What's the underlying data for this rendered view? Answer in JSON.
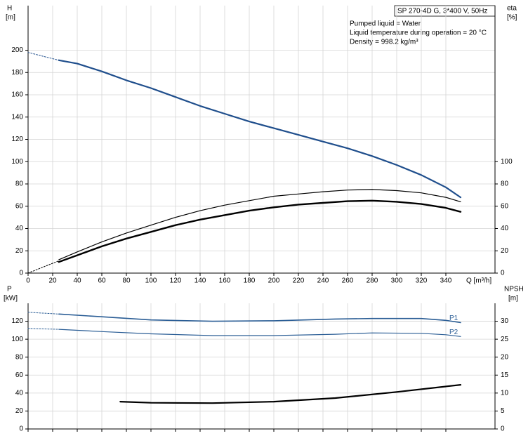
{
  "chart_data": [
    {
      "type": "line",
      "title": "SP 270-4D G, 3*400 V, 50Hz",
      "annotations": [
        "Pumped liquid = Water",
        "Liquid temperature during operation = 20 °C",
        "Density = 998.2 kg/m³"
      ],
      "y_label": [
        "H",
        "[m]"
      ],
      "y2_label": [
        "eta",
        "[%]"
      ],
      "x_label": "Q [m³/h]",
      "xlim": [
        0,
        380
      ],
      "xticks": [
        0,
        20,
        40,
        60,
        80,
        100,
        120,
        140,
        160,
        180,
        200,
        220,
        240,
        260,
        280,
        300,
        320,
        340
      ],
      "ylim": [
        0,
        240
      ],
      "yticks": [
        0,
        20,
        40,
        60,
        80,
        100,
        120,
        140,
        160,
        180,
        200
      ],
      "y2lim": [
        0,
        240
      ],
      "y2ticks": [
        0,
        20,
        40,
        60,
        80,
        100
      ],
      "grid": true,
      "series": [
        {
          "color": "#1f4e8c",
          "width": 1,
          "dashed": true,
          "x": [
            0,
            25
          ],
          "values": [
            198,
            191
          ]
        },
        {
          "color": "#1f4e8c",
          "width": 2.2,
          "x": [
            25,
            40,
            60,
            80,
            100,
            120,
            140,
            160,
            180,
            200,
            220,
            240,
            260,
            280,
            300,
            320,
            340,
            352
          ],
          "values": [
            191,
            188,
            181,
            173,
            166,
            158,
            150,
            143,
            136,
            130,
            124,
            118,
            112,
            105,
            97,
            88,
            77,
            68
          ]
        },
        {
          "color": "#000000",
          "width": 1,
          "dashed": true,
          "axis": "y2",
          "x": [
            0,
            25
          ],
          "values": [
            0,
            11
          ]
        },
        {
          "color": "#000000",
          "width": 1.2,
          "axis": "y2",
          "x": [
            25,
            40,
            60,
            80,
            100,
            120,
            140,
            160,
            180,
            200,
            220,
            240,
            260,
            280,
            300,
            320,
            340,
            352
          ],
          "values": [
            12,
            19,
            28,
            36,
            43,
            50,
            56,
            61,
            65,
            69,
            71,
            73,
            74.5,
            75,
            74,
            72,
            68,
            64
          ]
        },
        {
          "color": "#000000",
          "width": 2.4,
          "axis": "y2",
          "x": [
            25,
            40,
            60,
            80,
            100,
            120,
            140,
            160,
            180,
            200,
            220,
            240,
            260,
            280,
            300,
            320,
            340,
            352
          ],
          "values": [
            10,
            16,
            24,
            31,
            37,
            43,
            48,
            52,
            56,
            59,
            61.5,
            63,
            64.5,
            65,
            64,
            62,
            58.5,
            55
          ]
        }
      ]
    },
    {
      "type": "line",
      "y_label": [
        "P",
        "[kW]"
      ],
      "y2_label": [
        "NPSH",
        "[m]"
      ],
      "xlim": [
        0,
        380
      ],
      "ylim": [
        0,
        140
      ],
      "yticks": [
        0,
        20,
        40,
        60,
        80,
        100,
        120
      ],
      "y2lim": [
        0,
        35
      ],
      "y2ticks": [
        0,
        5,
        10,
        15,
        20,
        25,
        30
      ],
      "grid": true,
      "series": [
        {
          "color": "#2a5d95",
          "width": 1,
          "dashed": true,
          "x": [
            0,
            25
          ],
          "values": [
            130,
            128
          ]
        },
        {
          "name": "P1",
          "color": "#2a5d95",
          "width": 1.6,
          "x": [
            25,
            60,
            100,
            150,
            200,
            250,
            280,
            320,
            340,
            352
          ],
          "values": [
            128,
            125,
            121.5,
            120,
            120.5,
            122.5,
            123,
            123,
            121,
            118.5
          ]
        },
        {
          "color": "#2a5d95",
          "width": 1,
          "dashed": true,
          "x": [
            0,
            25
          ],
          "values": [
            112,
            111
          ]
        },
        {
          "name": "P2",
          "color": "#2a5d95",
          "width": 1.2,
          "x": [
            25,
            60,
            100,
            150,
            200,
            250,
            280,
            320,
            340,
            352
          ],
          "values": [
            111,
            108.5,
            106,
            104,
            104,
            105.5,
            107,
            106.5,
            105,
            103
          ]
        },
        {
          "color": "#000000",
          "width": 2.2,
          "axis": "y2",
          "x": [
            75,
            100,
            150,
            200,
            250,
            300,
            352
          ],
          "values": [
            7.6,
            7.3,
            7.2,
            7.6,
            8.6,
            10.3,
            12.3
          ]
        }
      ]
    }
  ]
}
